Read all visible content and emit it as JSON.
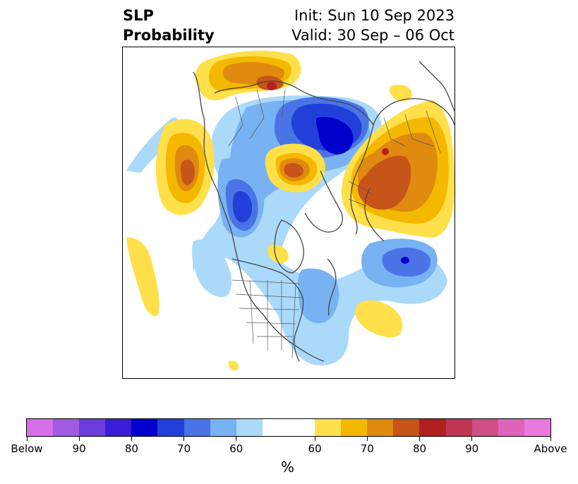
{
  "title": {
    "left_line1": "SLP",
    "left_line2": "Probability",
    "right_line1": "Init: Sun 10 Sep 2023",
    "right_line2": "Valid: 30 Sep – 06 Oct"
  },
  "colorbar": {
    "segments": [
      "#d66fe8",
      "#a05be0",
      "#6b3ddb",
      "#3b1ed6",
      "#0000cc",
      "#2240d9",
      "#4a74e6",
      "#79b2f2",
      "#aad9fa",
      "#ffffff",
      "#ffe04a",
      "#f5b800",
      "#e08a10",
      "#c75418",
      "#b02020",
      "#c03552",
      "#cf4f86",
      "#de64ba",
      "#e87ae0"
    ],
    "labels": [
      "Below",
      "90",
      "80",
      "70",
      "60",
      "60",
      "70",
      "80",
      "90",
      "Above"
    ],
    "unit": "%"
  },
  "map": {
    "colors": {
      "light_blue": "#aad9fa",
      "mid_blue": "#79b2f2",
      "blue": "#4a74e6",
      "deep_blue": "#2240d9",
      "dark_blue": "#0000cc",
      "yellow": "#ffe04a",
      "gold": "#f5b800",
      "orange": "#e08a10",
      "rust": "#c75418",
      "red": "#b02020",
      "coast": "#444444",
      "border": "#555555"
    }
  }
}
